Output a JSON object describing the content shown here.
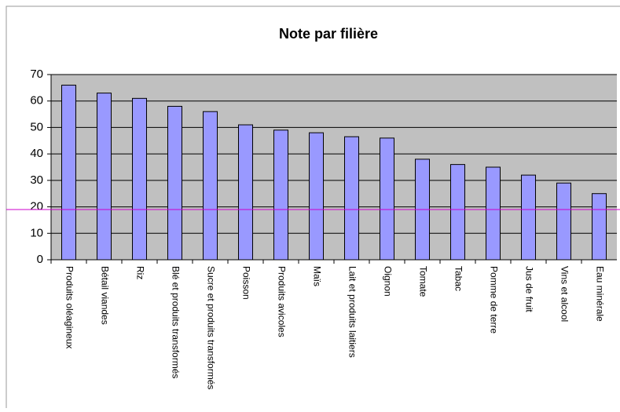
{
  "chart_data": {
    "type": "bar",
    "title": "Note par filière",
    "categories": [
      "Produits oléagineux",
      "Bétail viandes",
      "Riz",
      "Blé et produits transformés",
      "Sucre et produits transformés",
      "Poisson",
      "Produits avicoles",
      "Maïs",
      "Lait et produits laitiers",
      "Oignon",
      "Tomate",
      "Tabac",
      "Pomme de terre",
      "Jus de fruit",
      "Vins et alcool",
      "Eau minérale"
    ],
    "values": [
      66,
      63,
      61,
      58,
      56,
      51,
      49,
      48,
      46.5,
      46,
      38,
      36,
      35,
      32,
      29,
      25
    ],
    "color": "#9999ff",
    "ylim": [
      0,
      70
    ],
    "yticks": [
      0,
      10,
      20,
      30,
      40,
      50,
      60,
      70
    ],
    "grid": true,
    "reference_line": {
      "value": 19,
      "color": "#cc00cc"
    }
  }
}
